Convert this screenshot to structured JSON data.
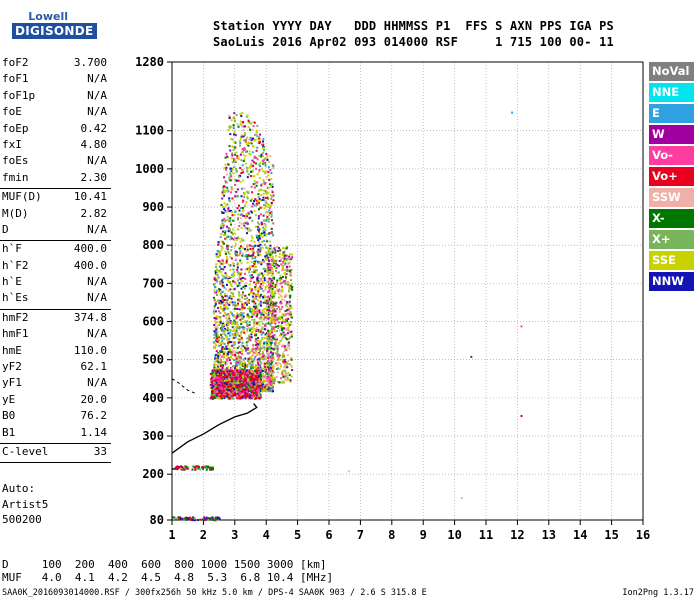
{
  "logo": {
    "brand": "Lowell",
    "product": "DIGISONDE"
  },
  "header": {
    "line1": "Station YYYY DAY   DDD HHMMSS P1  FFS S AXN PPS IGA PS",
    "line2": "SaoLuis 2016 Apr02 093 014000 RSF     1 715 100 00- 11"
  },
  "params": [
    {
      "label": "foF2",
      "value": "3.700"
    },
    {
      "label": "foF1",
      "value": "N/A"
    },
    {
      "label": "foF1p",
      "value": "N/A"
    },
    {
      "label": "foE",
      "value": "N/A"
    },
    {
      "label": "foEp",
      "value": "0.42"
    },
    {
      "label": "fxI",
      "value": "4.80"
    },
    {
      "label": "foEs",
      "value": "N/A"
    },
    {
      "label": "fmin",
      "value": "2.30"
    },
    {
      "sep": true
    },
    {
      "label": "MUF(D)",
      "value": "10.41"
    },
    {
      "label": "M(D)",
      "value": "2.82"
    },
    {
      "label": "D",
      "value": "N/A"
    },
    {
      "sep": true
    },
    {
      "label": "h`F",
      "value": "400.0"
    },
    {
      "label": "h`F2",
      "value": "400.0"
    },
    {
      "label": "h`E",
      "value": "N/A"
    },
    {
      "label": "h`Es",
      "value": "N/A"
    },
    {
      "sep": true
    },
    {
      "label": "hmF2",
      "value": "374.8"
    },
    {
      "label": "hmF1",
      "value": "N/A"
    },
    {
      "label": "hmE",
      "value": "110.0"
    },
    {
      "label": "yF2",
      "value": "62.1"
    },
    {
      "label": "yF1",
      "value": "N/A"
    },
    {
      "label": "yE",
      "value": "20.0"
    },
    {
      "label": "B0",
      "value": "76.2"
    },
    {
      "label": "B1",
      "value": "1.14"
    },
    {
      "sep": true
    },
    {
      "label": "C-level",
      "value": "33"
    },
    {
      "sep": true
    }
  ],
  "auto": {
    "line1": "Auto:",
    "line2": "Artist5",
    "line3": "500200"
  },
  "legend": [
    {
      "label": "NoVal",
      "color": "#808080"
    },
    {
      "label": "NNE",
      "color": "#00e5ee"
    },
    {
      "label": "E",
      "color": "#2fa0e0"
    },
    {
      "label": "W",
      "color": "#a000a0"
    },
    {
      "label": "Vo-",
      "color": "#ff3ca0"
    },
    {
      "label": "Vo+",
      "color": "#e8001e"
    },
    {
      "label": "SSW",
      "color": "#f0b0a8"
    },
    {
      "label": "X-",
      "color": "#007800"
    },
    {
      "label": "X+",
      "color": "#78b45a"
    },
    {
      "label": "SSE",
      "color": "#c8d200"
    },
    {
      "label": "NNW",
      "color": "#1414b4"
    }
  ],
  "footer": {
    "d_line": "D     100  200  400  600  800 1000 1500 3000 [km]",
    "muf_line": "MUF   4.0  4.1  4.2  4.5  4.8  5.3  6.8 10.4 [MHz]",
    "source": "SAA0K_2016093014000.RSF / 300fx256h 50 kHz 5.0 km / DPS-4 SAA0K 903 / 2.6 S 315.8 E",
    "version": "Ion2Png 1.3.17"
  },
  "chart_data": {
    "type": "scatter",
    "x_unit": "MHz",
    "y_unit": "km",
    "xlim": [
      1,
      16
    ],
    "ylim": [
      80,
      1280
    ],
    "x_ticks": [
      "1",
      "2",
      "3",
      "4",
      "5",
      "6",
      "7",
      "8",
      "9",
      "10",
      "11",
      "12",
      "13",
      "14",
      "15",
      "16"
    ],
    "y_ticks": [
      {
        "v": 1280,
        "label": "1280"
      },
      {
        "v": 1100,
        "label": "1100"
      },
      {
        "v": 1000,
        "label": "1000"
      },
      {
        "v": 900,
        "label": "900"
      },
      {
        "v": 800,
        "label": "800"
      },
      {
        "v": 700,
        "label": "700"
      },
      {
        "v": 600,
        "label": "600"
      },
      {
        "v": 500,
        "label": "500"
      },
      {
        "v": 400,
        "label": "400"
      },
      {
        "v": 300,
        "label": "300"
      },
      {
        "v": 200,
        "label": "200"
      },
      {
        "v": 80,
        "label": "80"
      }
    ],
    "grid": "dotted",
    "profile": {
      "name": "electron density profile",
      "points": [
        [
          1.0,
          255
        ],
        [
          1.5,
          285
        ],
        [
          2.0,
          305
        ],
        [
          2.5,
          330
        ],
        [
          3.0,
          350
        ],
        [
          3.4,
          360
        ],
        [
          3.7,
          375
        ],
        [
          3.6,
          385
        ]
      ]
    },
    "dashed_trace": [
      [
        1.0,
        450
      ],
      [
        1.2,
        440
      ],
      [
        1.5,
        420
      ],
      [
        1.8,
        410
      ]
    ],
    "echo_clusters": [
      {
        "x": [
          2.3,
          4.0
        ],
        "y": [
          400,
          1150
        ],
        "label": "F2 trace (SSE/X+)"
      },
      {
        "x": [
          2.2,
          3.8
        ],
        "y": [
          400,
          460
        ],
        "label": "F trace (Vo+/Vo-)"
      },
      {
        "x": [
          1.0,
          2.3
        ],
        "y": [
          215,
          225
        ],
        "label": "E-region echoes"
      },
      {
        "x": [
          1.0,
          2.5
        ],
        "y": [
          83,
          90
        ],
        "label": "noise band"
      }
    ],
    "isolated_points": [
      {
        "x": 11.8,
        "y": 1150
      },
      {
        "x": 10.5,
        "y": 510
      },
      {
        "x": 12.1,
        "y": 590
      },
      {
        "x": 12.1,
        "y": 355
      },
      {
        "x": 10.2,
        "y": 140
      },
      {
        "x": 6.6,
        "y": 210
      }
    ]
  }
}
